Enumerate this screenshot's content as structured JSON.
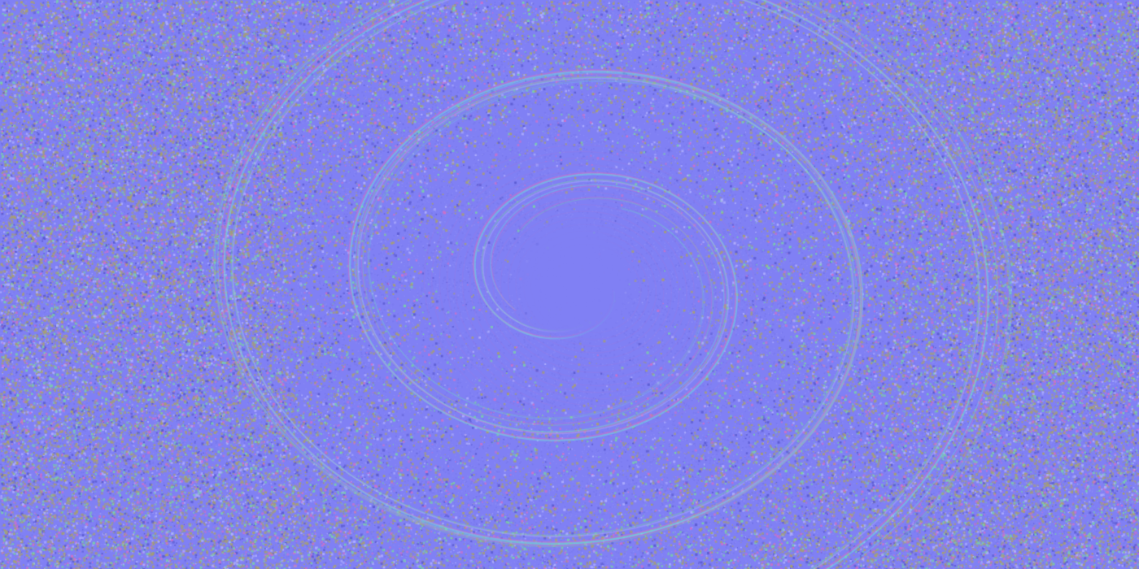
{
  "texture": {
    "kind": "normal-map",
    "pattern": "spiral-swirl",
    "colors": {
      "base": "#8080f4",
      "olive": "#a8a070",
      "green": "#7ad0a8",
      "magenta": "#d070c8",
      "cyan": "#70d8e0",
      "highlight": "#b0b0ff",
      "shadow": "#5a5ad0"
    }
  }
}
